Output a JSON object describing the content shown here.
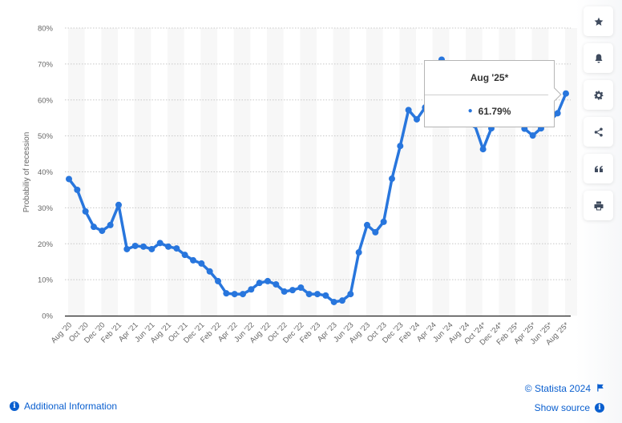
{
  "chart_data": {
    "type": "line",
    "title": "",
    "xlabel": "",
    "ylabel": "Probabiliy of recession",
    "ylim": [
      0,
      80
    ],
    "yticks": [
      "0%",
      "10%",
      "20%",
      "30%",
      "40%",
      "50%",
      "60%",
      "70%",
      "80%"
    ],
    "grid": true,
    "legend": null,
    "tick_labels": [
      "Aug '20",
      "Oct '20",
      "Dec '20",
      "Feb '21",
      "Apr '21",
      "Jun '21",
      "Aug '21",
      "Oct '21",
      "Dec '21",
      "Feb '22",
      "Apr '22",
      "Jun '22",
      "Aug '22",
      "Oct '22",
      "Dec '22",
      "Feb '23",
      "Apr '23",
      "Jun '23",
      "Aug '23",
      "Oct '23",
      "Dec '23",
      "Feb '24",
      "Apr '24",
      "Jun '24",
      "Aug '24",
      "Oct '24*",
      "Dec '24*",
      "Feb '25*",
      "Apr '25*",
      "Jun '25*",
      "Aug '25*"
    ],
    "x": [
      "Aug '20",
      "Sep '20",
      "Oct '20",
      "Nov '20",
      "Dec '20",
      "Jan '21",
      "Feb '21",
      "Mar '21",
      "Apr '21",
      "May '21",
      "Jun '21",
      "Jul '21",
      "Aug '21",
      "Sep '21",
      "Oct '21",
      "Nov '21",
      "Dec '21",
      "Jan '22",
      "Feb '22",
      "Mar '22",
      "Apr '22",
      "May '22",
      "Jun '22",
      "Jul '22",
      "Aug '22",
      "Sep '22",
      "Oct '22",
      "Nov '22",
      "Dec '22",
      "Jan '23",
      "Feb '23",
      "Mar '23",
      "Apr '23",
      "May '23",
      "Jun '23",
      "Jul '23",
      "Aug '23",
      "Sep '23",
      "Oct '23",
      "Nov '23",
      "Dec '23",
      "Jan '24",
      "Feb '24",
      "Mar '24",
      "Apr '24",
      "May '24",
      "Jun '24",
      "Jul '24",
      "Aug '24",
      "Sep '24",
      "Oct '24*",
      "Nov '24*",
      "Dec '24*",
      "Jan '25*",
      "Feb '25*",
      "Mar '25*",
      "Apr '25*",
      "May '25*",
      "Jun '25*",
      "Jul '25*",
      "Aug '25*"
    ],
    "series": [
      {
        "name": "Probability of recession",
        "color": "#2876dd",
        "unit": "%",
        "values": [
          38.0,
          35.0,
          29.0,
          24.7,
          23.6,
          25.2,
          30.8,
          18.5,
          19.4,
          19.2,
          18.5,
          20.2,
          19.2,
          18.7,
          16.9,
          15.4,
          14.5,
          12.3,
          9.6,
          6.2,
          6.0,
          6.0,
          7.3,
          9.1,
          9.6,
          8.7,
          6.7,
          7.1,
          7.8,
          6.0,
          6.0,
          5.6,
          3.8,
          4.2,
          6.0,
          17.6,
          25.2,
          23.2,
          26.1,
          38.1,
          47.2,
          57.2,
          54.6,
          57.9,
          64.5,
          71.2,
          66.0,
          60.0,
          57.0,
          53.0,
          46.3,
          52.1,
          55.0,
          57.0,
          55.0,
          52.0,
          50.1,
          52.1,
          54.0,
          56.3,
          61.79
        ]
      }
    ],
    "tooltip": {
      "label": "Aug '25*",
      "value": "61.79%"
    }
  },
  "toolbar": {
    "items": [
      {
        "name": "favorite",
        "icon": "star-icon"
      },
      {
        "name": "notification",
        "icon": "bell-icon"
      },
      {
        "name": "settings",
        "icon": "gear-icon"
      },
      {
        "name": "share",
        "icon": "share-icon"
      },
      {
        "name": "cite",
        "icon": "quote-icon"
      },
      {
        "name": "print",
        "icon": "print-icon"
      }
    ]
  },
  "footer": {
    "additional_info": "Additional Information",
    "copyright": "© Statista 2024",
    "show_source": "Show source"
  },
  "colors": {
    "line": "#2876dd",
    "link": "#0a5fcf",
    "icon": "#3f4b5e"
  }
}
